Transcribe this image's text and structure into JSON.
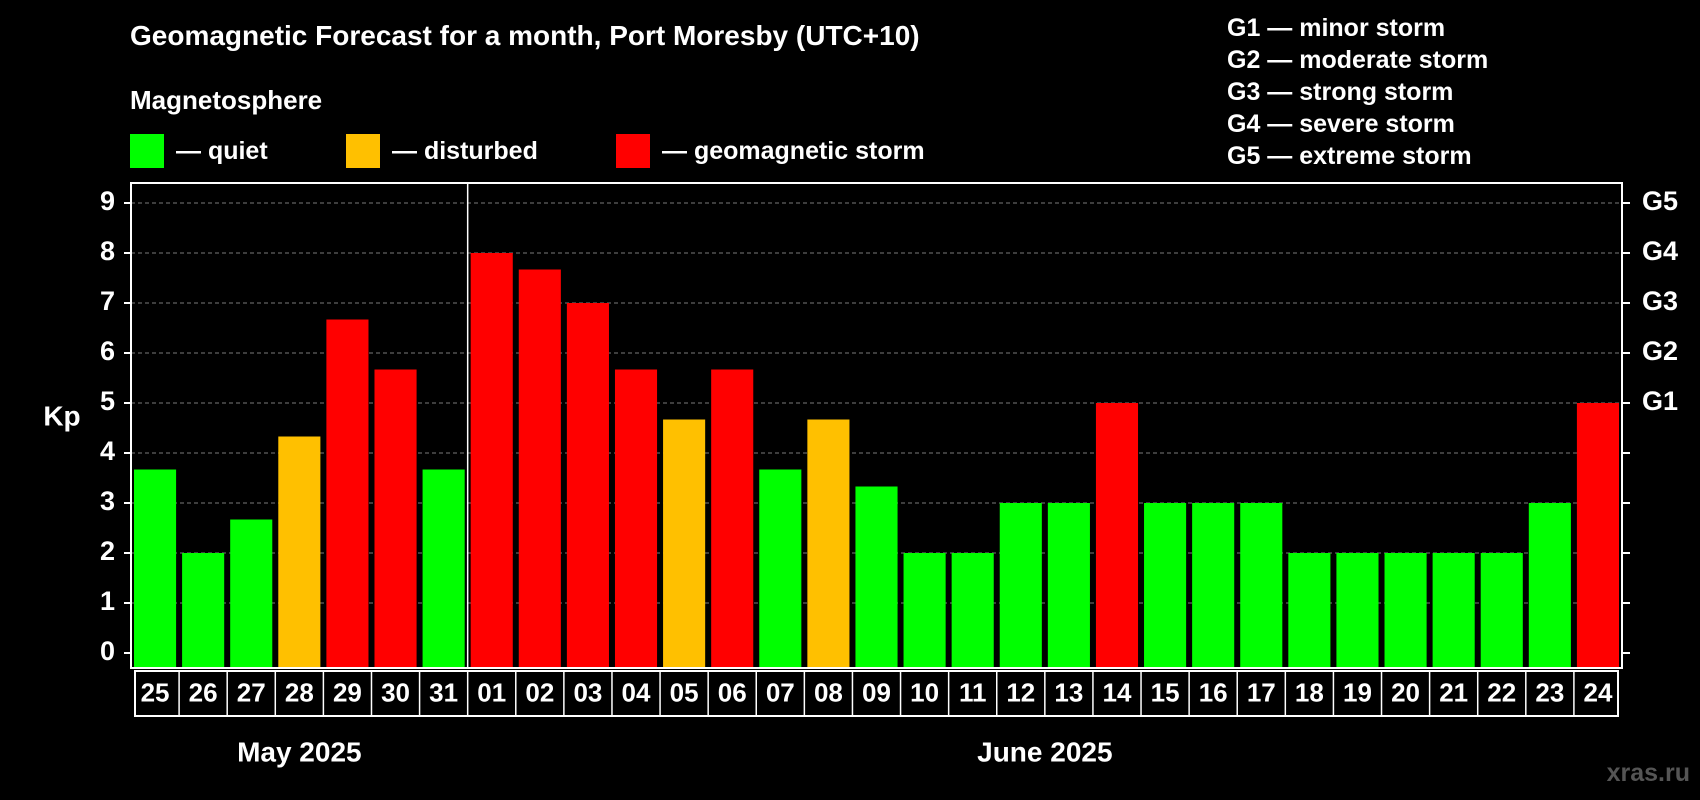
{
  "chart_data": {
    "type": "bar",
    "title": "Geomagnetic Forecast for a month, Port Moresby (UTC+10)",
    "subtitle": "Magnetosphere",
    "ylabel": "Kp",
    "ylim": [
      -0.3,
      9.4
    ],
    "yticks": [
      "0",
      "1",
      "2",
      "3",
      "4",
      "5",
      "6",
      "7",
      "8",
      "9"
    ],
    "g_ticks": [
      {
        "kp": 5,
        "label": "G1"
      },
      {
        "kp": 6,
        "label": "G2"
      },
      {
        "kp": 7,
        "label": "G3"
      },
      {
        "kp": 8,
        "label": "G4"
      },
      {
        "kp": 9,
        "label": "G5"
      }
    ],
    "categories": [
      "25",
      "26",
      "27",
      "28",
      "29",
      "30",
      "31",
      "01",
      "02",
      "03",
      "04",
      "05",
      "06",
      "07",
      "08",
      "09",
      "10",
      "11",
      "12",
      "13",
      "14",
      "15",
      "16",
      "17",
      "18",
      "19",
      "20",
      "21",
      "22",
      "23",
      "24"
    ],
    "values": [
      3.67,
      2,
      2.67,
      4.33,
      6.67,
      5.67,
      3.67,
      8,
      7.67,
      7,
      5.67,
      4.67,
      5.67,
      3.67,
      4.67,
      3.33,
      2,
      2,
      3,
      3,
      5,
      3,
      3,
      3,
      2,
      2,
      2,
      2,
      2,
      3,
      5
    ],
    "levels": [
      "quiet",
      "quiet",
      "quiet",
      "disturbed",
      "storm",
      "storm",
      "quiet",
      "storm",
      "storm",
      "storm",
      "storm",
      "disturbed",
      "storm",
      "quiet",
      "disturbed",
      "quiet",
      "quiet",
      "quiet",
      "quiet",
      "quiet",
      "storm",
      "quiet",
      "quiet",
      "quiet",
      "quiet",
      "quiet",
      "quiet",
      "quiet",
      "quiet",
      "quiet",
      "storm"
    ],
    "colors": {
      "quiet": "#00ff00",
      "disturbed": "#ffc000",
      "storm": "#ff0000"
    },
    "months": [
      {
        "label": "May 2025",
        "start": 0,
        "end": 6
      },
      {
        "label": "June 2025",
        "start": 7,
        "end": 30
      }
    ],
    "grid": true
  },
  "legend": [
    {
      "key": "quiet",
      "label": "— quiet",
      "color": "#00ff00"
    },
    {
      "key": "disturbed",
      "label": "— disturbed",
      "color": "#ffc000"
    },
    {
      "key": "storm",
      "label": "— geomagnetic storm",
      "color": "#ff0000"
    }
  ],
  "g_scale": [
    "G1 — minor storm",
    "G2 — moderate storm",
    "G3 — strong storm",
    "G4 — severe storm",
    "G5 — extreme storm"
  ],
  "watermark": "xras.ru"
}
